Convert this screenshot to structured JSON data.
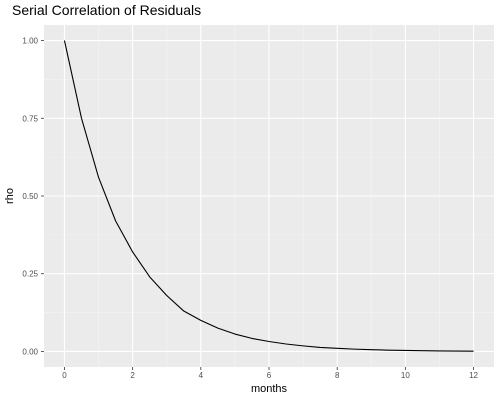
{
  "chart_data": {
    "type": "line",
    "title": "Serial Correlation of Residuals",
    "xlabel": "months",
    "ylabel": "rho",
    "xlim": [
      -0.6,
      12.6
    ],
    "ylim": [
      -0.05,
      1.05
    ],
    "x_ticks": [
      0,
      2,
      4,
      6,
      8,
      10,
      12
    ],
    "x_tick_labels": [
      "0",
      "2",
      "4",
      "6",
      "8",
      "10",
      "12"
    ],
    "x_minor_ticks": [
      1,
      3,
      5,
      7,
      9,
      11
    ],
    "y_ticks": [
      0,
      0.25,
      0.5,
      0.75,
      1.0
    ],
    "y_tick_labels": [
      "0.00",
      "0.25",
      "0.50",
      "0.75",
      "1.00"
    ],
    "y_minor_ticks": [
      0.125,
      0.375,
      0.625,
      0.875
    ],
    "grid": true,
    "legend": "none",
    "x": [
      0,
      0.5,
      1,
      1.5,
      2,
      2.5,
      3,
      3.5,
      4,
      4.5,
      5,
      5.5,
      6,
      6.5,
      7,
      7.5,
      8,
      8.5,
      9,
      9.5,
      10,
      10.5,
      11,
      11.5,
      12
    ],
    "values": [
      1.0,
      0.75,
      0.56,
      0.42,
      0.32,
      0.24,
      0.18,
      0.13,
      0.1,
      0.075,
      0.056,
      0.042,
      0.032,
      0.024,
      0.018,
      0.013,
      0.01,
      0.0075,
      0.0056,
      0.0042,
      0.0032,
      0.0024,
      0.0018,
      0.0013,
      0.001
    ],
    "colors": {
      "panel_background": "#EBEBEB",
      "grid_major": "#FFFFFF",
      "grid_minor": "#F5F5F5",
      "line": "#000000",
      "tick_mark": "#333333",
      "tick_label": "#4D4D4D",
      "text": "#000000"
    }
  }
}
